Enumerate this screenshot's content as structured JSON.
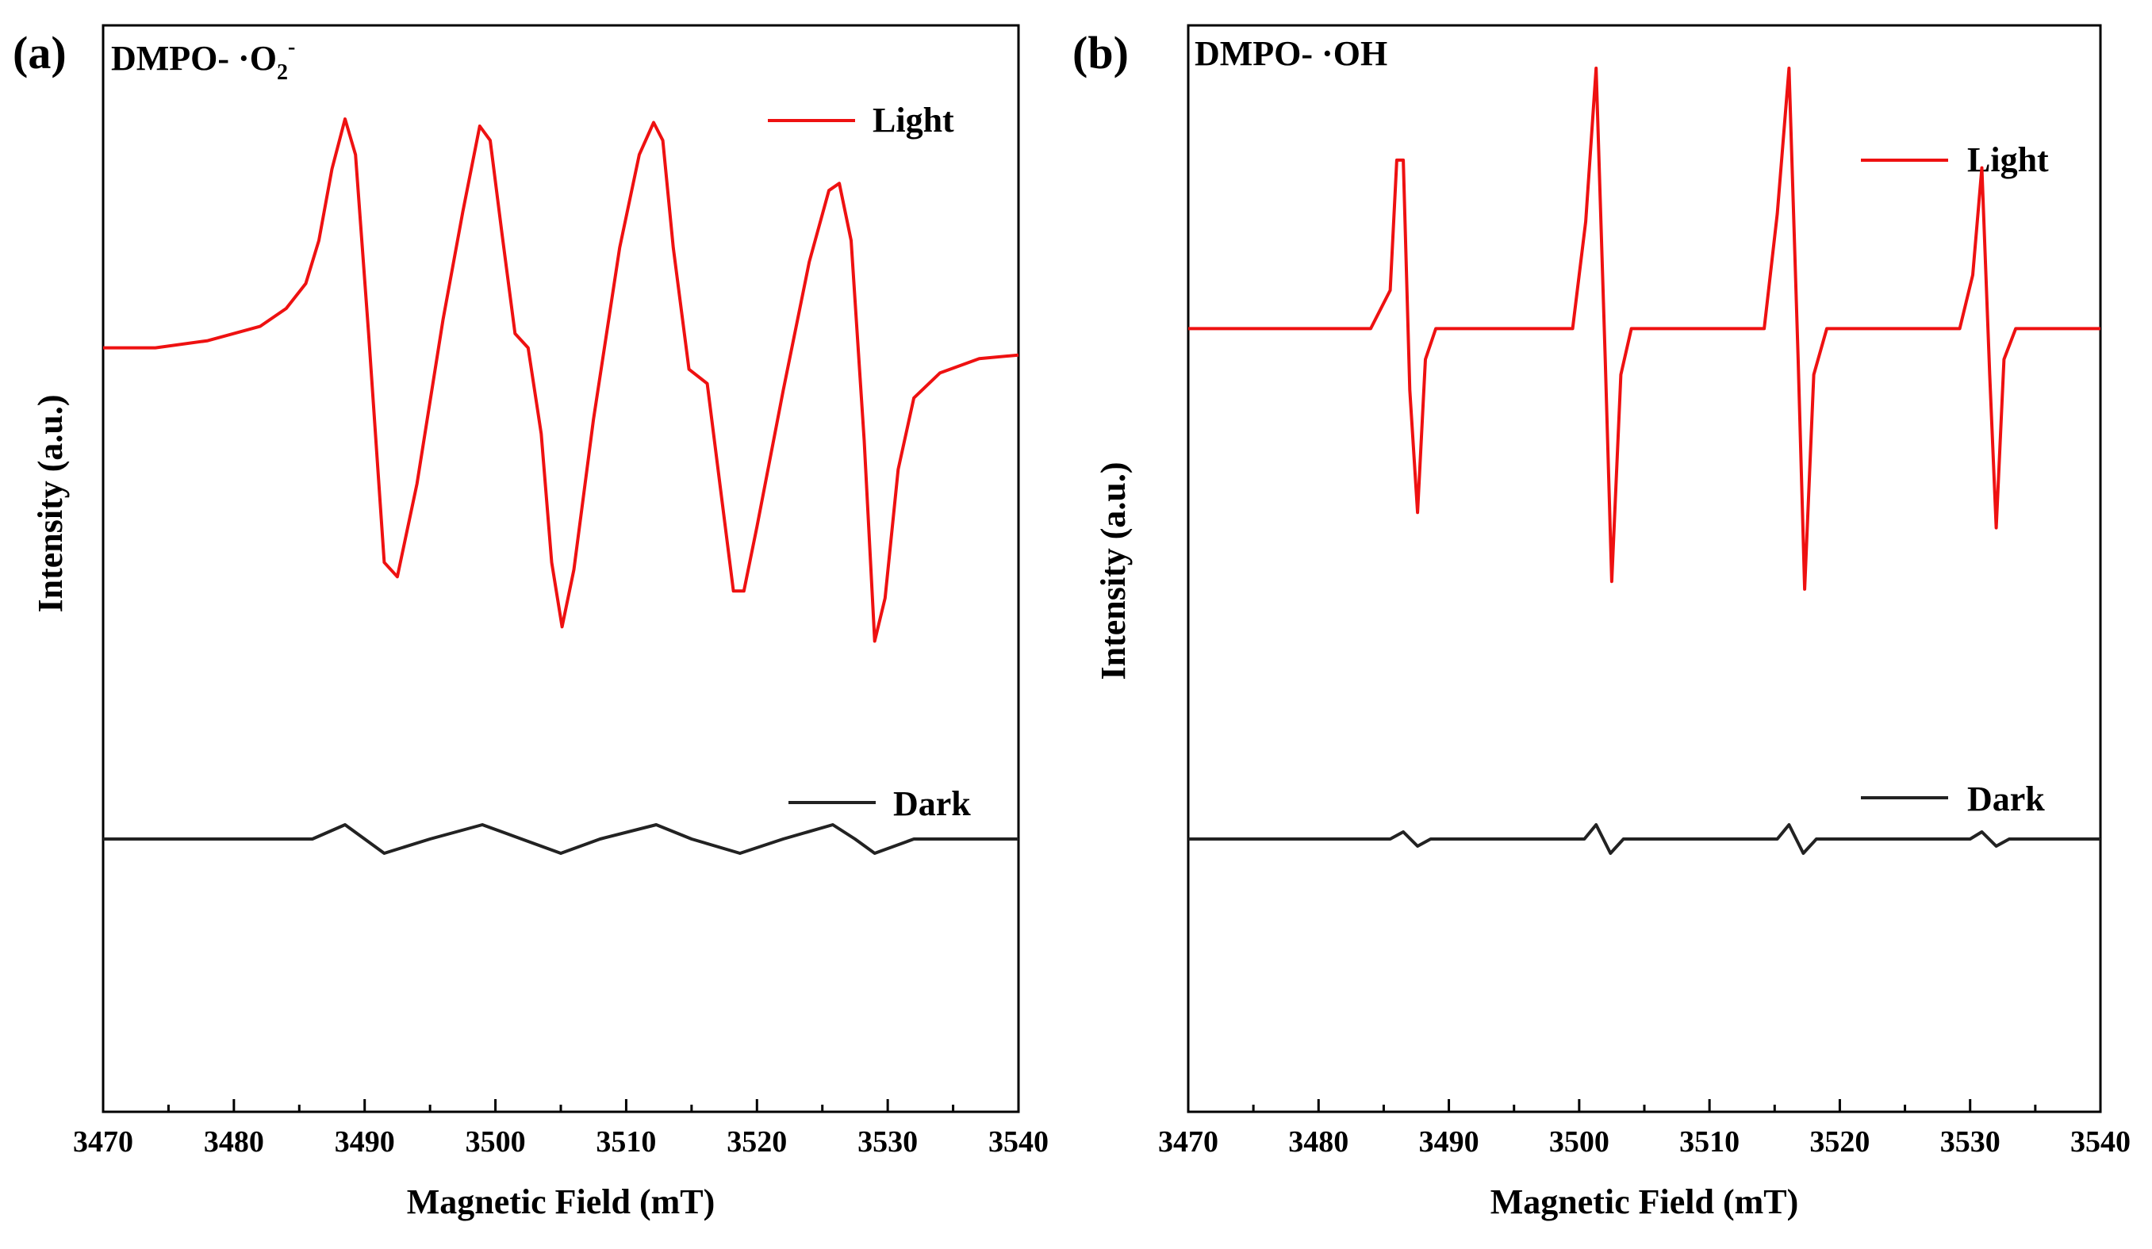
{
  "figure": {
    "colors": {
      "light": "#ee1111",
      "dark": "#222222",
      "axis": "#000000"
    }
  },
  "chart_data": [
    {
      "type": "line",
      "panel_label": "(a)",
      "title": {
        "prefix": "DMPO- ·O",
        "subscript": "2",
        "superscript": "-"
      },
      "xlabel": "Magnetic Field (mT)",
      "ylabel": "Intensity (a.u.)",
      "xlim": [
        3470,
        3540
      ],
      "ylim": [
        -1.0,
        1.0
      ],
      "xticks": [
        3470,
        3480,
        3490,
        3500,
        3510,
        3520,
        3530,
        3540
      ],
      "xtick_labels": [
        "3470",
        "3480",
        "3490",
        "3500",
        "3510",
        "3520",
        "3530",
        "3540"
      ],
      "legend": {
        "position": "top-right",
        "light_label": "Light",
        "dark_label": "Dark"
      },
      "series": [
        {
          "name": "Light",
          "color": "#ee1111",
          "x": [
            3470,
            3474,
            3478,
            3482,
            3484,
            3485.5,
            3486.5,
            3487.5,
            3488.5,
            3489.3,
            3490.3,
            3491.5,
            3492.5,
            3494,
            3496,
            3497.5,
            3498.8,
            3499.6,
            3500.5,
            3501.5,
            3502.5,
            3503.5,
            3504.3,
            3505.1,
            3506,
            3507.5,
            3509.5,
            3511,
            3512.1,
            3512.8,
            3513.6,
            3514.8,
            3516.2,
            3517.3,
            3518.2,
            3519.0,
            3520,
            3522,
            3524,
            3525.5,
            3526.3,
            3527.2,
            3528.2,
            3529.0,
            3529.8,
            3530.8,
            3532,
            3534,
            3537,
            3540
          ],
          "y": [
            0.68,
            0.68,
            0.69,
            0.71,
            0.735,
            0.77,
            0.83,
            0.93,
            1.0,
            0.95,
            0.7,
            0.38,
            0.36,
            0.49,
            0.72,
            0.87,
            0.99,
            0.97,
            0.84,
            0.7,
            0.68,
            0.56,
            0.38,
            0.29,
            0.37,
            0.58,
            0.82,
            0.95,
            0.995,
            0.97,
            0.82,
            0.65,
            0.63,
            0.47,
            0.34,
            0.34,
            0.43,
            0.62,
            0.8,
            0.9,
            0.91,
            0.83,
            0.55,
            0.27,
            0.33,
            0.51,
            0.61,
            0.645,
            0.665,
            0.67
          ]
        },
        {
          "name": "Dark",
          "color": "#222222",
          "x": [
            3470,
            3486,
            3488.5,
            3491.5,
            3495,
            3499,
            3502,
            3505,
            3508,
            3512.3,
            3515,
            3518.7,
            3522,
            3525.8,
            3527.5,
            3529,
            3532,
            3540
          ],
          "y": [
            0.0,
            0.0,
            0.02,
            -0.02,
            0.0,
            0.02,
            0.0,
            -0.02,
            0.0,
            0.02,
            0.0,
            -0.02,
            0.0,
            0.02,
            0.0,
            -0.02,
            0.0,
            0.0
          ]
        }
      ]
    },
    {
      "type": "line",
      "panel_label": "(b)",
      "title": {
        "prefix": "DMPO- ·OH",
        "subscript": "",
        "superscript": ""
      },
      "xlabel": "Magnetic Field (mT)",
      "ylabel": "Intensity (a.u.)",
      "xlim": [
        3470,
        3540
      ],
      "ylim": [
        -1.0,
        1.0
      ],
      "xticks": [
        3470,
        3480,
        3490,
        3500,
        3510,
        3520,
        3530,
        3540
      ],
      "xtick_labels": [
        "3470",
        "3480",
        "3490",
        "3500",
        "3510",
        "3520",
        "3530",
        "3540"
      ],
      "legend": {
        "position": "top-right",
        "light_label": "Light",
        "dark_label": "Dark"
      },
      "series": [
        {
          "name": "Light",
          "color": "#ee1111",
          "x": [
            3470,
            3484,
            3485.5,
            3486.0,
            3486.5,
            3487.0,
            3487.6,
            3488.2,
            3489.0,
            3499.5,
            3500.5,
            3501.3,
            3502.0,
            3502.5,
            3503.2,
            3504.0,
            3514.2,
            3515.2,
            3516.1,
            3516.8,
            3517.3,
            3518.0,
            3519.0,
            3529.2,
            3530.2,
            3530.9,
            3531.5,
            3532.0,
            3532.6,
            3533.5,
            3540
          ],
          "y": [
            0.66,
            0.66,
            0.71,
            0.88,
            0.88,
            0.58,
            0.42,
            0.62,
            0.66,
            0.66,
            0.8,
            1.0,
            0.62,
            0.33,
            0.6,
            0.66,
            0.66,
            0.81,
            1.0,
            0.62,
            0.32,
            0.6,
            0.66,
            0.66,
            0.73,
            0.87,
            0.6,
            0.4,
            0.62,
            0.66,
            0.66
          ]
        },
        {
          "name": "Dark",
          "color": "#222222",
          "x": [
            3470,
            3485.5,
            3486.5,
            3487.6,
            3488.6,
            3500.4,
            3501.3,
            3502.4,
            3503.4,
            3515.2,
            3516.1,
            3517.2,
            3518.2,
            3530,
            3530.9,
            3532.0,
            3533,
            3540
          ],
          "y": [
            0.0,
            0.0,
            0.01,
            -0.01,
            0.0,
            0.0,
            0.02,
            -0.02,
            0.0,
            0.0,
            0.02,
            -0.02,
            0.0,
            0.0,
            0.01,
            -0.01,
            0.0,
            0.0
          ]
        }
      ]
    }
  ]
}
